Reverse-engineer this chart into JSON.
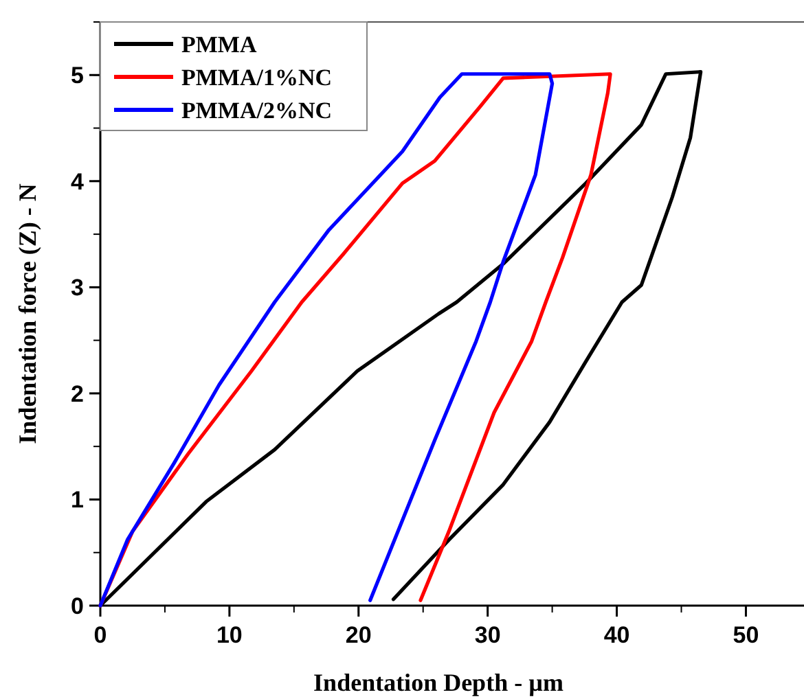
{
  "chart_data": {
    "type": "line",
    "xlabel": "Indentation Depth - µm",
    "ylabel": "Indentation force (Z) - N",
    "xlim": [
      0,
      54.5
    ],
    "ylim": [
      0,
      5.5
    ],
    "xticks": [
      0,
      10,
      20,
      30,
      40,
      50
    ],
    "yticks": [
      0,
      1,
      2,
      3,
      4,
      5
    ],
    "grid": false,
    "legend": "top left",
    "marker": "none",
    "line_style": "solid",
    "series": [
      {
        "name": "PMMA",
        "color": "#000000",
        "x": [
          0,
          8.2,
          13.5,
          19.9,
          26.2,
          27.6,
          31.2,
          37.6,
          41.9,
          43.8,
          46.5,
          45.7,
          44.3,
          41.9,
          40.4,
          37.6,
          34.8,
          31.2,
          27.0,
          22.7
        ],
        "values": [
          0,
          0.98,
          1.47,
          2.21,
          2.75,
          2.86,
          3.22,
          3.98,
          4.53,
          5.01,
          5.03,
          4.41,
          3.85,
          3.02,
          2.86,
          2.3,
          1.73,
          1.14,
          0.62,
          0.06
        ]
      },
      {
        "name": "PMMA/1%NC",
        "color": "#ff0000",
        "x": [
          0,
          2.5,
          6.8,
          11.7,
          15.6,
          18.8,
          23.4,
          25.9,
          29.4,
          31.2,
          39.5,
          39.3,
          38.0,
          35.8,
          34.5,
          33.4,
          30.5,
          27.0,
          24.8
        ],
        "values": [
          0,
          0.7,
          1.43,
          2.21,
          2.86,
          3.31,
          3.98,
          4.19,
          4.7,
          4.97,
          5.01,
          4.83,
          4.06,
          3.28,
          2.86,
          2.49,
          1.82,
          0.7,
          0.05
        ]
      },
      {
        "name": "PMMA/2%NC",
        "color": "#0000ff",
        "x": [
          0,
          2.1,
          5.7,
          9.2,
          13.5,
          17.7,
          23.4,
          26.3,
          28.0,
          34.8,
          35.0,
          33.7,
          31.2,
          30.2,
          29.1,
          25.9,
          20.9
        ],
        "values": [
          0,
          0.62,
          1.34,
          2.08,
          2.86,
          3.54,
          4.28,
          4.79,
          5.01,
          5.01,
          4.92,
          4.06,
          3.24,
          2.86,
          2.49,
          1.56,
          0.05
        ]
      }
    ]
  }
}
